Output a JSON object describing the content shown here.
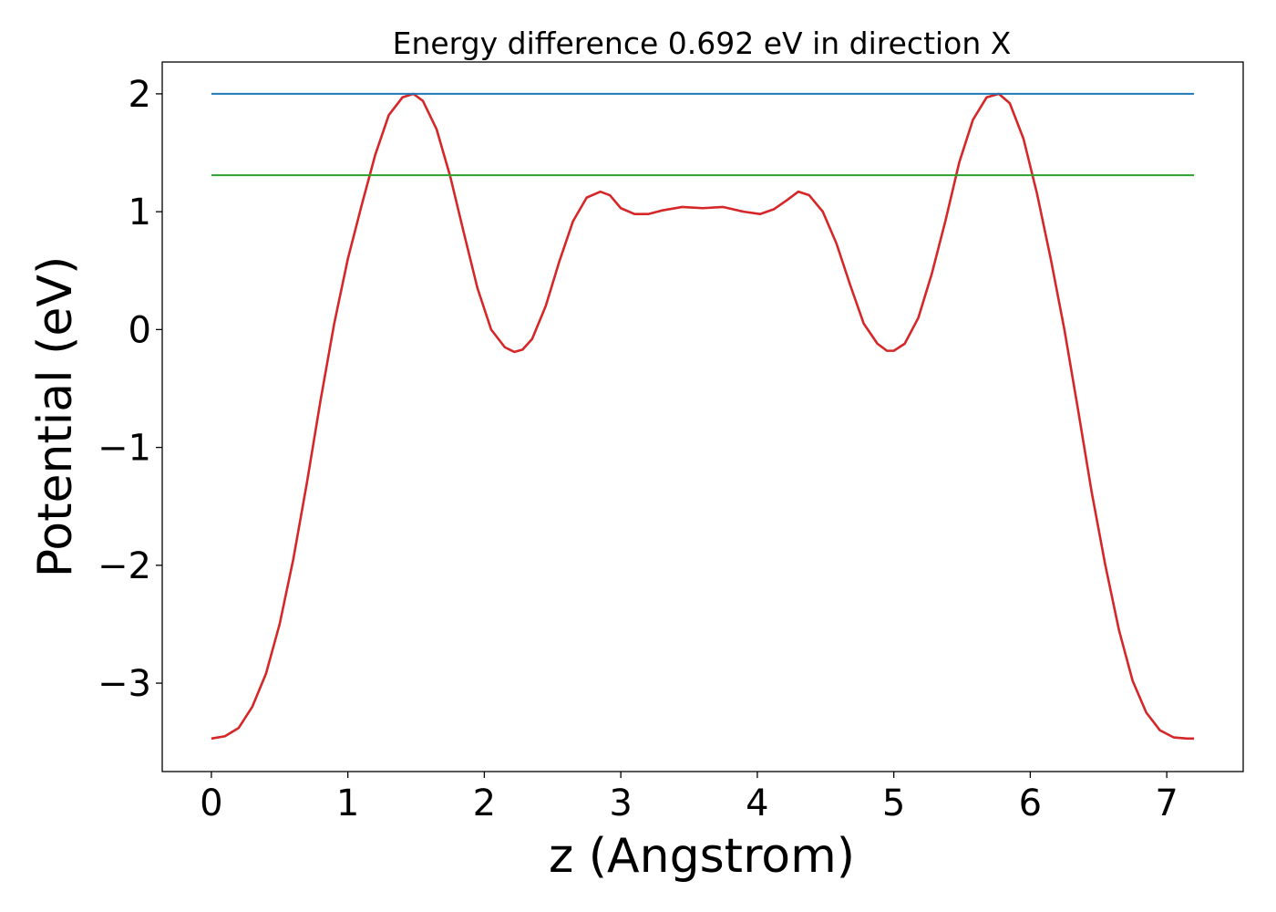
{
  "chart_data": {
    "type": "line",
    "title": "Energy difference 0.692 eV in direction X",
    "xlabel": "z (Angstrom)",
    "ylabel": "Potential (eV)",
    "xlim": [
      -0.36,
      7.56
    ],
    "ylim": [
      -3.75,
      2.27
    ],
    "xticks": [
      0,
      1,
      2,
      3,
      4,
      5,
      6,
      7
    ],
    "yticks": [
      -3,
      -2,
      -1,
      0,
      1,
      2
    ],
    "xtick_labels": [
      "0",
      "1",
      "2",
      "3",
      "4",
      "5",
      "6",
      "7"
    ],
    "ytick_labels": [
      "−3",
      "−2",
      "−1",
      "0",
      "1",
      "2"
    ],
    "grid": false,
    "series": [
      {
        "color": "#d62728",
        "x": [
          0,
          0.1,
          0.2,
          0.3,
          0.4,
          0.5,
          0.6,
          0.7,
          0.8,
          0.9,
          1.0,
          1.1,
          1.2,
          1.3,
          1.4,
          1.48,
          1.55,
          1.65,
          1.75,
          1.85,
          1.95,
          2.05,
          2.15,
          2.22,
          2.28,
          2.35,
          2.45,
          2.55,
          2.65,
          2.75,
          2.85,
          2.92,
          3.0,
          3.1,
          3.2,
          3.3,
          3.45,
          3.6,
          3.75,
          3.9,
          4.02,
          4.12,
          4.22,
          4.3,
          4.38,
          4.48,
          4.58,
          4.68,
          4.78,
          4.88,
          4.95,
          5.0,
          5.08,
          5.18,
          5.28,
          5.38,
          5.48,
          5.58,
          5.68,
          5.77,
          5.85,
          5.95,
          6.05,
          6.15,
          6.25,
          6.35,
          6.45,
          6.55,
          6.65,
          6.75,
          6.85,
          6.95,
          7.05,
          7.15,
          7.2
        ],
        "y": [
          -3.47,
          -3.45,
          -3.38,
          -3.2,
          -2.92,
          -2.5,
          -1.95,
          -1.3,
          -0.6,
          0.05,
          0.6,
          1.05,
          1.48,
          1.82,
          1.97,
          2.0,
          1.94,
          1.7,
          1.3,
          0.82,
          0.35,
          0.0,
          -0.15,
          -0.19,
          -0.17,
          -0.08,
          0.2,
          0.58,
          0.92,
          1.12,
          1.17,
          1.14,
          1.03,
          0.98,
          0.98,
          1.01,
          1.04,
          1.03,
          1.04,
          1.0,
          0.98,
          1.02,
          1.1,
          1.17,
          1.14,
          1.0,
          0.73,
          0.38,
          0.05,
          -0.12,
          -0.18,
          -0.18,
          -0.12,
          0.1,
          0.48,
          0.93,
          1.42,
          1.78,
          1.97,
          2.0,
          1.92,
          1.62,
          1.15,
          0.6,
          0.0,
          -0.68,
          -1.38,
          -2.0,
          -2.55,
          -2.98,
          -3.25,
          -3.4,
          -3.46,
          -3.47,
          -3.47
        ]
      },
      {
        "color": "#1f77b4",
        "x": [
          0,
          7.2
        ],
        "y": [
          2.0,
          2.0
        ]
      },
      {
        "color": "#2ca02c",
        "x": [
          0,
          7.2
        ],
        "y": [
          1.31,
          1.31
        ]
      }
    ]
  }
}
